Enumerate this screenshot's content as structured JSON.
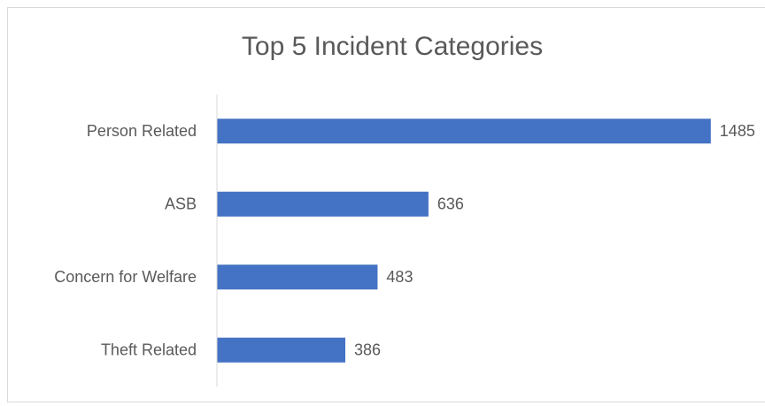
{
  "chart_data": {
    "type": "bar",
    "orientation": "horizontal",
    "title": "Top 5 Incident Categories",
    "categories": [
      "Person Related",
      "ASB",
      "Concern for Welfare",
      "Theft Related"
    ],
    "values": [
      1485,
      636,
      483,
      386
    ],
    "color": "#4472c4",
    "xlim": [
      0,
      1600
    ],
    "grid": false,
    "data_labels": true
  }
}
